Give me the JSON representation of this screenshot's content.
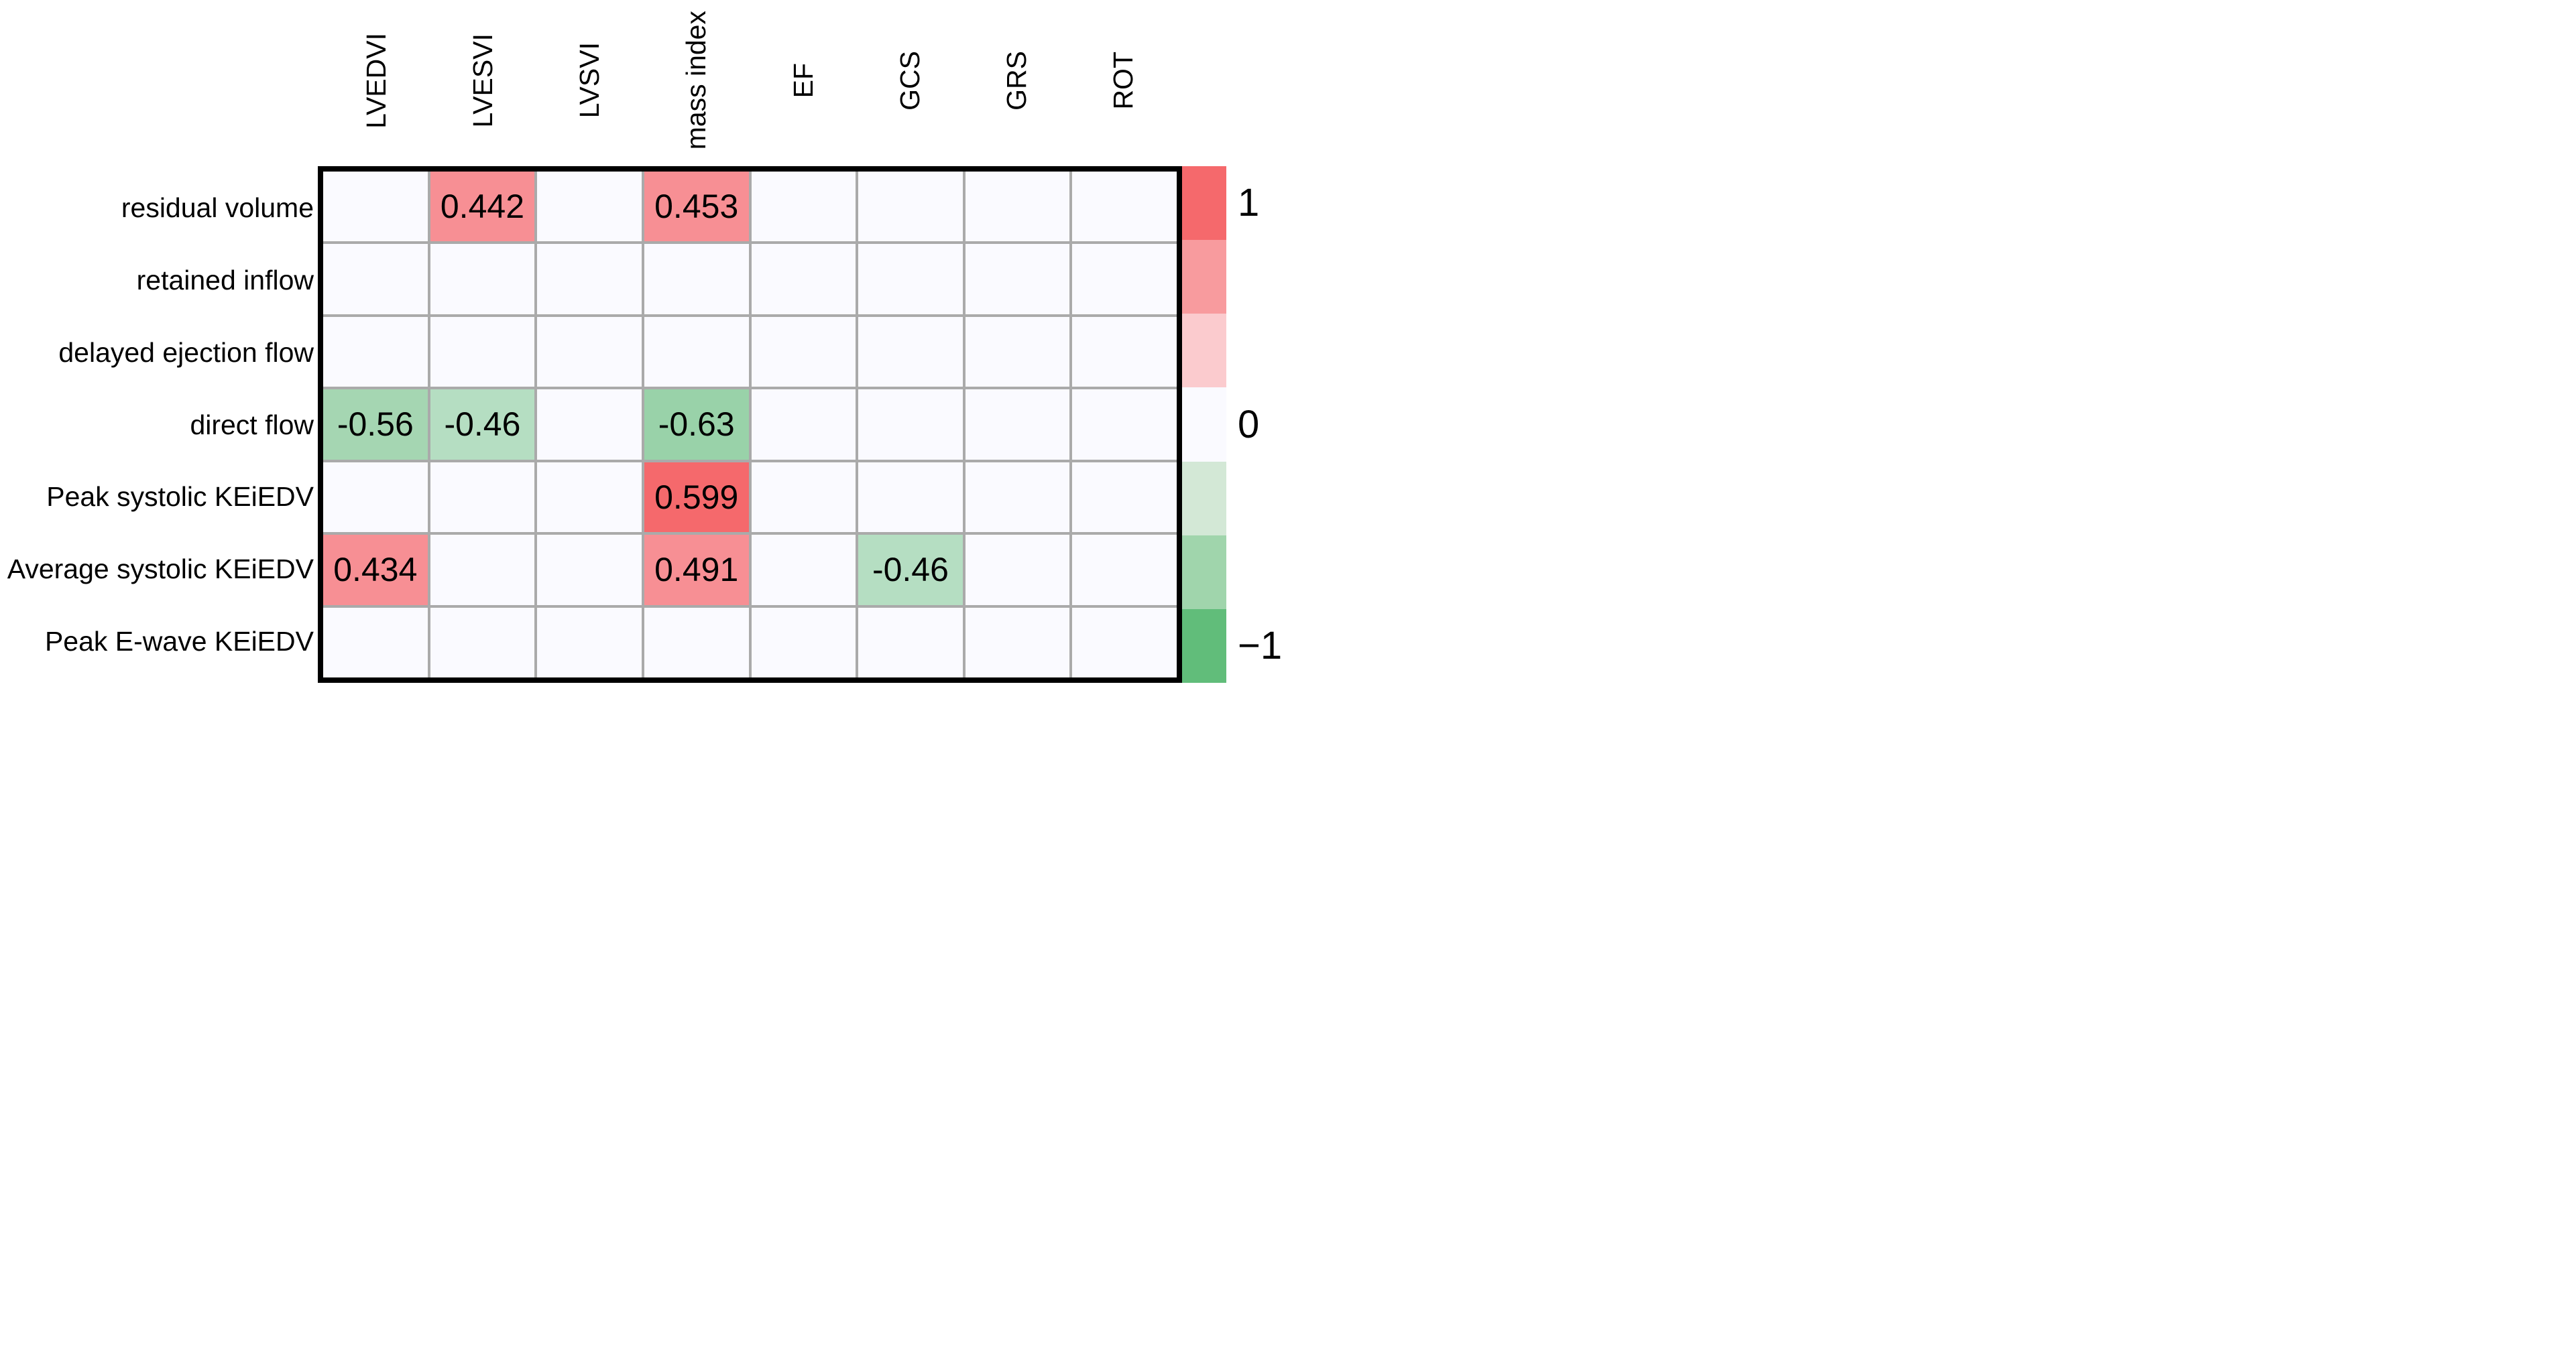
{
  "figure": {
    "background": "#ffffff",
    "grid_line_color": "#aaaaaa",
    "axes_border_color": "#000000",
    "empty_cell_color": "#fafaff",
    "text_color": "#000000"
  },
  "heatmap": {
    "columns": [
      "LVEDVI",
      "LVESVI",
      "LVSVI",
      "mass index",
      "EF",
      "GCS",
      "GRS",
      "ROT"
    ],
    "rows": [
      "residual volume",
      "retained inflow",
      "delayed ejection flow",
      "direct flow",
      "Peak systolic KEiEDV",
      "Average systolic KEiEDV",
      "Peak E-wave KEiEDV"
    ],
    "cells": [
      [
        null,
        {
          "text": "0.442",
          "color": "#f78f94"
        },
        null,
        {
          "text": "0.453",
          "color": "#f78f94"
        },
        null,
        null,
        null,
        null
      ],
      [
        null,
        null,
        null,
        null,
        null,
        null,
        null,
        null
      ],
      [
        null,
        null,
        null,
        null,
        null,
        null,
        null,
        null
      ],
      [
        {
          "text": "-0.56",
          "color": "#a5d6b2"
        },
        {
          "text": "-0.46",
          "color": "#b5dec2"
        },
        null,
        {
          "text": "-0.63",
          "color": "#99d2a9"
        },
        null,
        null,
        null,
        null
      ],
      [
        null,
        null,
        null,
        {
          "text": "0.599",
          "color": "#f5696c"
        },
        null,
        null,
        null,
        null
      ],
      [
        {
          "text": "0.434",
          "color": "#f78f94"
        },
        null,
        null,
        {
          "text": "0.491",
          "color": "#f78f94"
        },
        null,
        {
          "text": "-0.46",
          "color": "#b5dec2"
        },
        null,
        null
      ],
      [
        null,
        null,
        null,
        null,
        null,
        null,
        null,
        null
      ]
    ]
  },
  "colorbar": {
    "segment_colors": [
      "#f5696c",
      "#f89b9e",
      "#fbcbce",
      "#fafaff",
      "#d3e8d6",
      "#a0d5ac",
      "#61bd7a"
    ],
    "ticks": [
      {
        "label": "1",
        "segment_index": 0
      },
      {
        "label": "0",
        "segment_index": 3
      },
      {
        "label": "−1",
        "segment_index": 6
      }
    ]
  },
  "chart_data": {
    "type": "heatmap",
    "title": "",
    "x_categories": [
      "LVEDVI",
      "LVESVI",
      "LVSVI",
      "mass index",
      "EF",
      "GCS",
      "GRS",
      "ROT"
    ],
    "y_categories": [
      "residual volume",
      "retained inflow",
      "delayed ejection flow",
      "direct flow",
      "Peak systolic KEiEDV",
      "Average systolic KEiEDV",
      "Peak E-wave KEiEDV"
    ],
    "values": [
      [
        null,
        0.442,
        null,
        0.453,
        null,
        null,
        null,
        null
      ],
      [
        null,
        null,
        null,
        null,
        null,
        null,
        null,
        null
      ],
      [
        null,
        null,
        null,
        null,
        null,
        null,
        null,
        null
      ],
      [
        -0.56,
        -0.46,
        null,
        -0.63,
        null,
        null,
        null,
        null
      ],
      [
        null,
        null,
        null,
        0.599,
        null,
        null,
        null,
        null
      ],
      [
        0.434,
        null,
        null,
        0.491,
        null,
        -0.46,
        null,
        null
      ],
      [
        null,
        null,
        null,
        null,
        null,
        null,
        null,
        null
      ]
    ],
    "value_range": [
      -1,
      1
    ],
    "colormap": "red(+1) to white(0) to green(-1), only significant correlations shown",
    "colorbar_ticks": [
      1,
      0,
      -1
    ],
    "legend_position": "right",
    "grid": true
  }
}
